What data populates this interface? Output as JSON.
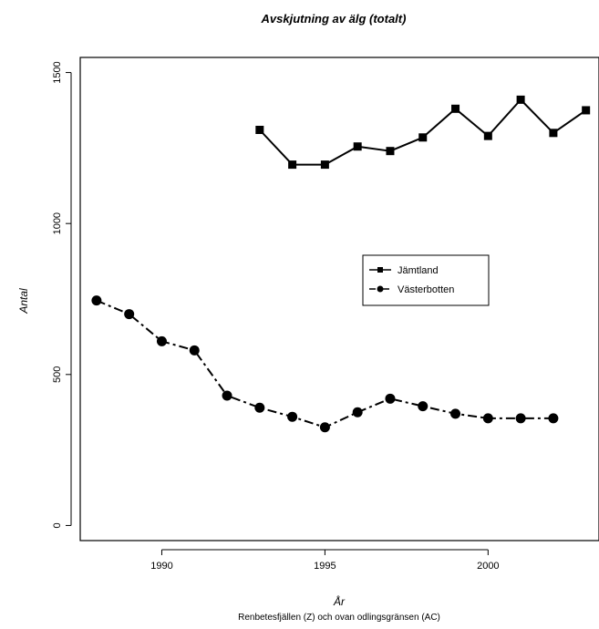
{
  "chart_data": {
    "type": "line",
    "title": "Avskjutning av älg (totalt)",
    "xlabel": "År",
    "ylabel": "Antal",
    "subtitle": "Renbetesfjällen (Z) och ovan odlingsgränsen (AC)",
    "xlim": [
      1987.5,
      2003.4
    ],
    "ylim": [
      -50,
      1550
    ],
    "x_ticks": [
      1990,
      1995,
      2000
    ],
    "y_ticks": [
      0,
      500,
      1000,
      1500
    ],
    "grid": false,
    "legend_position": "center-right",
    "series": [
      {
        "name": "Jämtland",
        "marker": "square",
        "line_style": "solid",
        "color": "#000000",
        "x": [
          1993,
          1994,
          1995,
          1996,
          1997,
          1998,
          1999,
          2000,
          2001,
          2002,
          2003
        ],
        "y": [
          1310,
          1195,
          1195,
          1255,
          1240,
          1285,
          1380,
          1290,
          1410,
          1300,
          1375
        ]
      },
      {
        "name": "Västerbotten",
        "marker": "circle",
        "line_style": "dash-dot",
        "color": "#000000",
        "x": [
          1988,
          1989,
          1990,
          1991,
          1992,
          1993,
          1994,
          1995,
          1996,
          1997,
          1998,
          1999,
          2000,
          2001,
          2002
        ],
        "y": [
          745,
          700,
          610,
          580,
          430,
          390,
          360,
          325,
          375,
          420,
          395,
          370,
          355,
          355,
          355
        ]
      }
    ]
  }
}
